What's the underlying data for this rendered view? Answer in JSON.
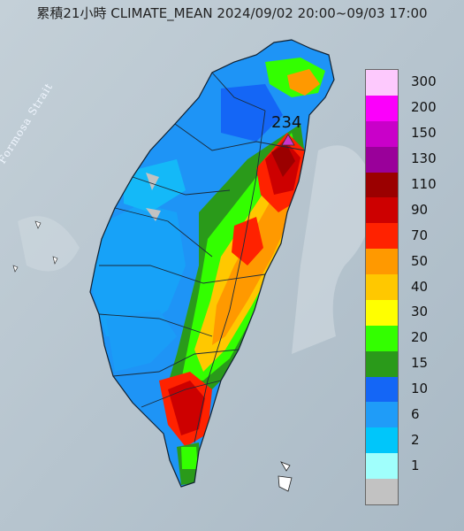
{
  "title": "累積21小時 CLIMATE_MEAN 2024/09/02 20:00~09/03 17:00",
  "map_label_strait": "Formosa Strait",
  "max_marker": {
    "label": "234",
    "color": "#cc33cc"
  },
  "legend": [
    {
      "label": "300",
      "color": "#fdc9fd"
    },
    {
      "label": "200",
      "color": "#fb00fb"
    },
    {
      "label": "150",
      "color": "#c900c9"
    },
    {
      "label": "130",
      "color": "#9a009a"
    },
    {
      "label": "110",
      "color": "#9b0000"
    },
    {
      "label": "90",
      "color": "#cd0000"
    },
    {
      "label": "70",
      "color": "#ff2200"
    },
    {
      "label": "50",
      "color": "#ff9900"
    },
    {
      "label": "40",
      "color": "#ffc800"
    },
    {
      "label": "30",
      "color": "#ffff00"
    },
    {
      "label": "20",
      "color": "#33ff00"
    },
    {
      "label": "15",
      "color": "#2a9a1a"
    },
    {
      "label": "10",
      "color": "#1466f6"
    },
    {
      "label": "6",
      "color": "#1f9cf8"
    },
    {
      "label": "2",
      "color": "#00c6fa"
    },
    {
      "label": "1",
      "color": "#a0fffc"
    },
    {
      "label": "",
      "color": "#c2c2c2"
    }
  ]
}
